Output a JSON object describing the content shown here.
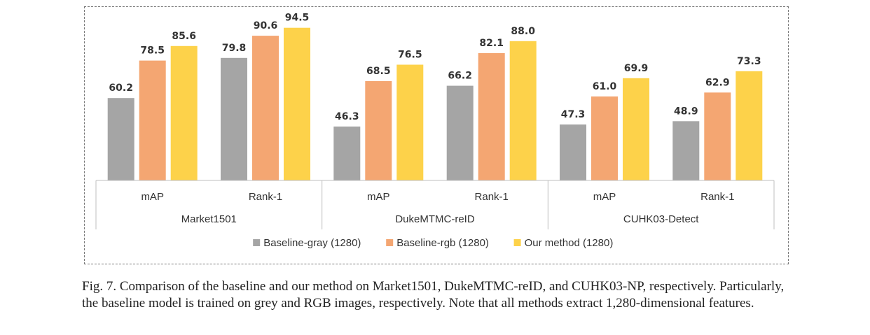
{
  "chart_data": {
    "type": "bar",
    "groups": [
      {
        "name": "Market1501",
        "categories": [
          "mAP",
          "Rank-1"
        ]
      },
      {
        "name": "DukeMTMC-reID",
        "categories": [
          "mAP",
          "Rank-1"
        ]
      },
      {
        "name": "CUHK03-Detect",
        "categories": [
          "mAP",
          "Rank-1"
        ]
      }
    ],
    "series": [
      {
        "name": "Baseline-gray (1280)",
        "color": "#a5a5a5",
        "values": [
          60.2,
          79.8,
          46.3,
          66.2,
          47.3,
          48.9
        ],
        "labels": [
          "60.2",
          "79.8",
          "46.3",
          "66.2",
          "47.3",
          "48.9"
        ]
      },
      {
        "name": "Baseline-rgb (1280)",
        "color": "#f4a672",
        "values": [
          78.5,
          90.6,
          68.5,
          82.1,
          61.0,
          62.9
        ],
        "labels": [
          "78.5",
          "90.6",
          "68.5",
          "82.1",
          "61.0",
          "62.9"
        ]
      },
      {
        "name": "Our method (1280)",
        "color": "#fdd24a",
        "values": [
          85.6,
          94.5,
          76.5,
          88.0,
          69.9,
          73.3
        ],
        "labels": [
          "85.6",
          "94.5",
          "76.5",
          "88.0",
          "69.9",
          "73.3"
        ]
      }
    ],
    "ylim": [
      20,
      100
    ],
    "grid": false,
    "legend": "bottom-center"
  },
  "caption": {
    "text": "Fig. 7.  Comparison of the baseline and our method on Market1501, DukeMTMC-reID, and CUHK03-NP, respectively. Particularly, the baseline model is trained on grey and RGB images, respectively. Note that all methods extract 1,280-dimensional features."
  }
}
